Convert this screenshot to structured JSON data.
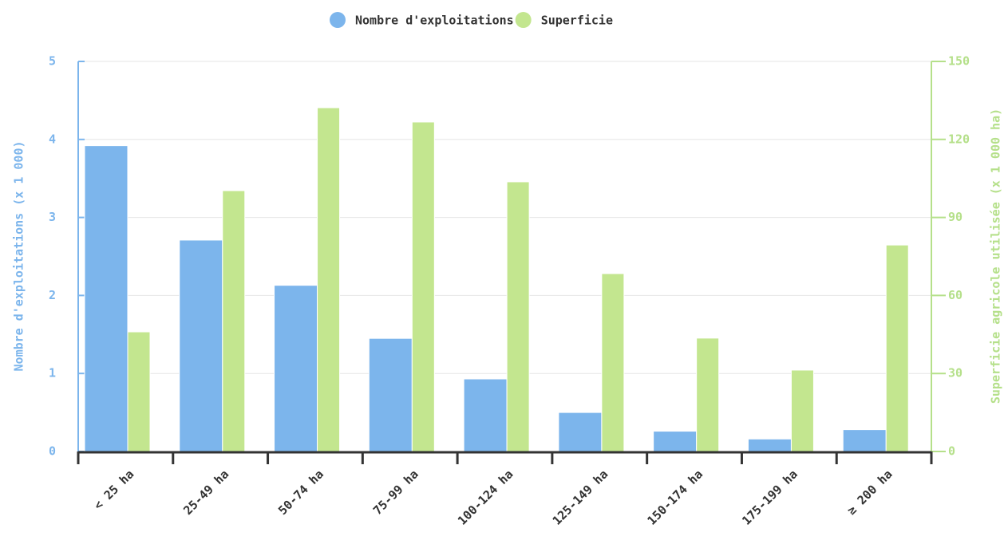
{
  "chart_data": {
    "type": "bar",
    "categories": [
      "< 25 ha",
      "25-49 ha",
      "50-74 ha",
      "75-99 ha",
      "100-124 ha",
      "125-149 ha",
      "150-174 ha",
      "175-199 ha",
      "≥ 200 ha"
    ],
    "series": [
      {
        "name": "Nombre d'exploitations",
        "color": "#7cb5ec",
        "values": [
          3.92,
          2.71,
          2.13,
          1.45,
          0.93,
          0.5,
          0.26,
          0.16,
          0.28
        ]
      },
      {
        "name": "Superficie",
        "color": "#c3e68f",
        "axis": "y2",
        "values": [
          46.0,
          100.3,
          132.2,
          126.7,
          103.7,
          68.4,
          43.6,
          31.3,
          79.4
        ]
      }
    ],
    "ylabel": "Nombre d'exploitations (x 1 000)",
    "y2label": "Superficie agricole utilisée (x 1 000 ha)",
    "ylim": [
      0,
      5
    ],
    "yticks": [
      0,
      1,
      2,
      3,
      4,
      5
    ],
    "y2lim": [
      0,
      150
    ],
    "y2ticks": [
      0,
      30,
      60,
      90,
      120,
      150
    ],
    "grid": true,
    "legend": "top"
  }
}
